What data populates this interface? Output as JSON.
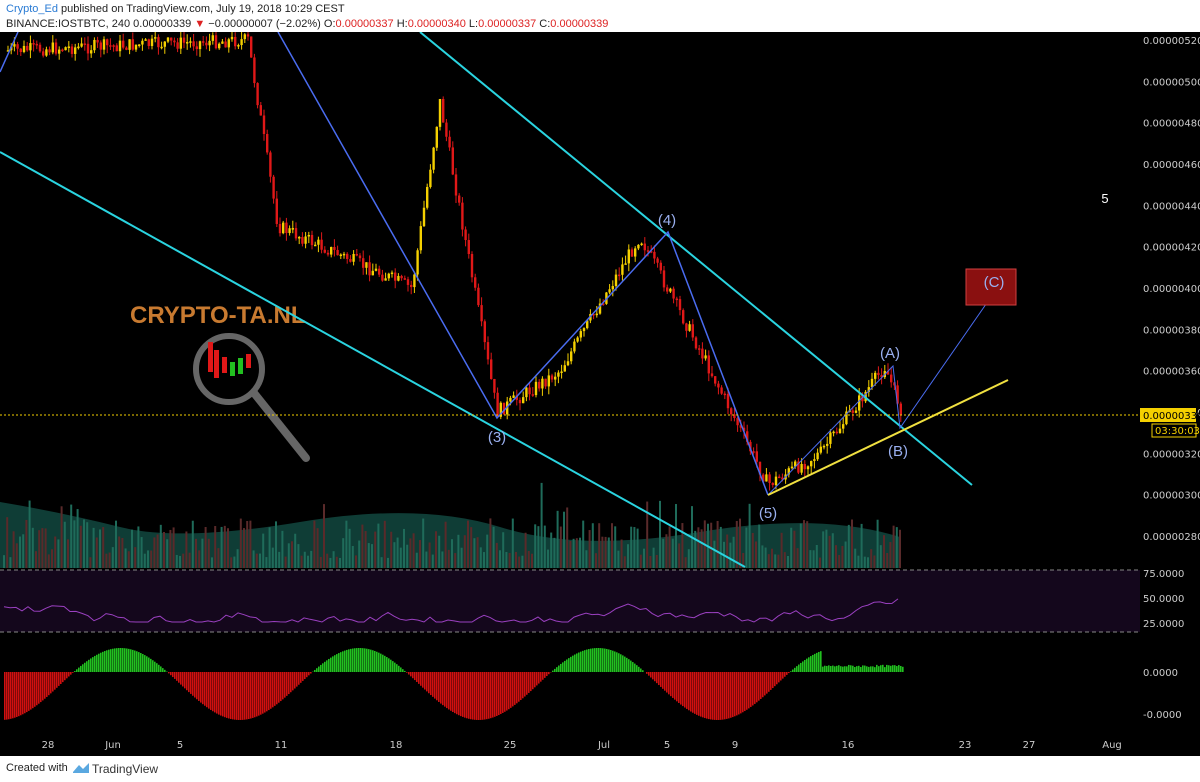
{
  "header": {
    "author": "Crypto_Ed",
    "published": "published on TradingView.com, July 19, 2018 10:29 CEST",
    "symbol": "BINANCE:IOSTBTC, 240",
    "last": "0.00000339",
    "change": "−0.00000007 (−2.02%)",
    "o_label": "O:",
    "o_value": "0.00000337",
    "h_label": "H:",
    "h_value": "0.00000340",
    "l_label": "L:",
    "l_value": "0.00000337",
    "c_label": "C:",
    "c_value": "0.00000339"
  },
  "footer": {
    "created": "Created with",
    "brand": "TradingView"
  },
  "watermark": "CRYPTO-TA.NL",
  "annotations": {
    "wave3": "(3)",
    "wave4": "(4)",
    "wave5": "(5)",
    "waveA": "(A)",
    "waveB": "(B)",
    "waveC": "(C)",
    "top_right": "5"
  },
  "colors": {
    "background": "#000000",
    "up_candle": "#f5d000",
    "down_candle": "#e01818",
    "channel": "#2ad4e0",
    "wave_line": "#4a6cf0",
    "support": "#f0e040",
    "rsi": "#9a40c0",
    "osc_up": "#22c020",
    "osc_down": "#d01010",
    "volume": "#1f6b5a",
    "price_tag": "#f5d000"
  },
  "chart_data": [
    {
      "type": "candlestick",
      "title": "BINANCE:IOSTBTC, 240",
      "x_ticks": [
        "28",
        "Jun",
        "5",
        "11",
        "18",
        "25",
        "Jul",
        "5",
        "9",
        "16",
        "23",
        "27",
        "Aug"
      ],
      "y_ticks": [
        "0.00000520",
        "0.00000500",
        "0.00000480",
        "0.00000460",
        "0.00000440",
        "0.00000420",
        "0.00000400",
        "0.00000380",
        "0.00000360",
        "0.00000340",
        "0.00000320",
        "0.00000300",
        "0.00000280"
      ],
      "ylim": [
        2.7e-06,
        5.2e-06
      ],
      "current_price": "0.00000339",
      "countdown": "03:30:03",
      "approx_close_path": [
        {
          "date": "May 28",
          "close": 5.15e-06
        },
        {
          "date": "Jun 8",
          "close": 5.2e-06
        },
        {
          "date": "Jun 12",
          "close": 4.3e-06
        },
        {
          "date": "Jun 16",
          "close": 4.15e-06
        },
        {
          "date": "Jun 19",
          "close": 4e-06
        },
        {
          "date": "Jun 21",
          "close": 4.9e-06
        },
        {
          "date": "Jun 24",
          "close": 3.4e-06
        },
        {
          "date": "Jun 28",
          "close": 3.6e-06
        },
        {
          "date": "Jul 4",
          "close": 4.25e-06
        },
        {
          "date": "Jul 7",
          "close": 3.7e-06
        },
        {
          "date": "Jul 11",
          "close": 3.05e-06
        },
        {
          "date": "Jul 15",
          "close": 3.2e-06
        },
        {
          "date": "Jul 18",
          "close": 3.62e-06
        },
        {
          "date": "Jul 19",
          "close": 3.39e-06
        }
      ]
    },
    {
      "type": "line",
      "name": "RSI",
      "y_ticks": [
        "75.0000",
        "50.0000",
        "25.0000"
      ],
      "ylim": [
        20,
        80
      ]
    },
    {
      "type": "bar",
      "name": "Oscillator",
      "y_ticks": [
        "0.0000",
        "-0.0000"
      ]
    }
  ]
}
